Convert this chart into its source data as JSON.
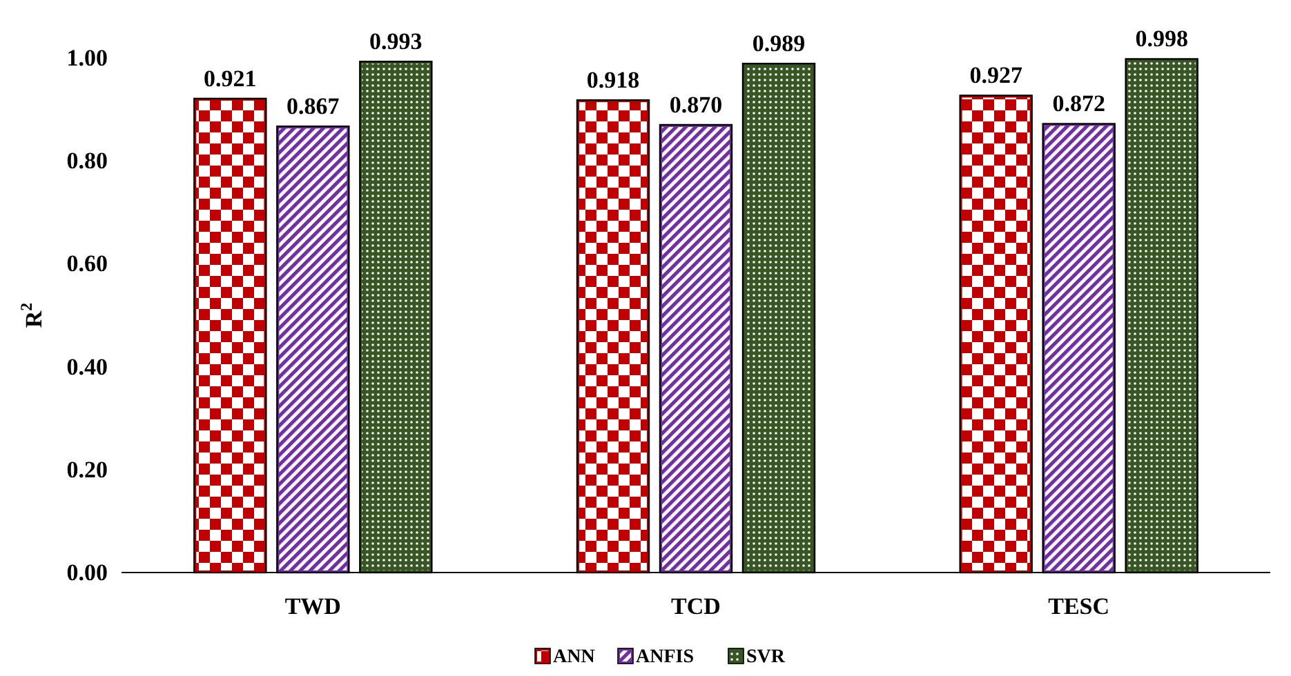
{
  "chart_data": {
    "type": "bar",
    "ylabel": "R$^{2}$",
    "categories": [
      "TWD",
      "TCD",
      "TESC"
    ],
    "series": [
      {
        "name": "ANN",
        "color": "#c00000",
        "values": [
          0.921,
          0.918,
          0.927
        ]
      },
      {
        "name": "ANFIS",
        "color": "#7030a0",
        "values": [
          0.867,
          0.87,
          0.872
        ]
      },
      {
        "name": "SVR",
        "color": "#375623",
        "values": [
          0.993,
          0.989,
          0.998
        ]
      }
    ],
    "value_labels": [
      [
        "0.921",
        "0.918",
        "0.927"
      ],
      [
        "0.867",
        "0.870",
        "0.872"
      ],
      [
        "0.993",
        "0.989",
        "0.998"
      ]
    ],
    "ylim": [
      0,
      1
    ],
    "yticks": [
      {
        "value": 0,
        "label": "0.00"
      },
      {
        "value": 0.2,
        "label": "0.20"
      },
      {
        "value": 0.4,
        "label": "0.40"
      },
      {
        "value": 0.6,
        "label": "0.60"
      },
      {
        "value": 0.8,
        "label": "0.80"
      },
      {
        "value": 1,
        "label": "1.00"
      }
    ],
    "grid": false,
    "legend": "bottom"
  }
}
